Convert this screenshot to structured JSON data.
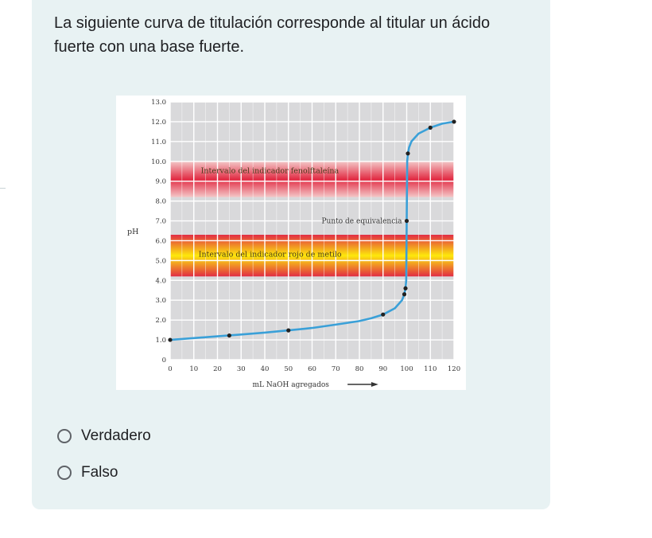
{
  "question": {
    "text": "La siguiente curva de titulación corresponde al titular un ácido fuerte con una base fuerte."
  },
  "options": [
    {
      "label": "Verdadero",
      "selected": false
    },
    {
      "label": "Falso",
      "selected": false
    }
  ],
  "chart_data": {
    "type": "line",
    "title": "",
    "xlabel": "mL NaOH agregados",
    "ylabel": "pH",
    "xlim": [
      0,
      120
    ],
    "ylim": [
      0,
      13
    ],
    "xticks": [
      "0",
      "10",
      "20",
      "30",
      "40",
      "50",
      "60",
      "70",
      "80",
      "90",
      "100",
      "110",
      "120"
    ],
    "yticks": [
      "0",
      "1.0",
      "2.0",
      "3.0",
      "4.0",
      "5.0",
      "6.0",
      "7.0",
      "8.0",
      "9.0",
      "10.0",
      "11.0",
      "12.0",
      "13.0"
    ],
    "grid": true,
    "series": [
      {
        "color": "#3aa0d8",
        "x": [
          0,
          10,
          20,
          30,
          40,
          50,
          60,
          70,
          80,
          85,
          90,
          95,
          98,
          99,
          99.5,
          99.8,
          100,
          100.2,
          100.5,
          101,
          102,
          105,
          110,
          115,
          120
        ],
        "y": [
          1.0,
          1.09,
          1.18,
          1.27,
          1.37,
          1.48,
          1.6,
          1.77,
          1.95,
          2.09,
          2.28,
          2.59,
          3.0,
          3.3,
          3.6,
          4.0,
          7.0,
          10.0,
          10.4,
          10.7,
          11.0,
          11.4,
          11.7,
          11.9,
          12.0
        ]
      }
    ],
    "points": [
      {
        "x": 0,
        "y": 1.0
      },
      {
        "x": 25,
        "y": 1.22
      },
      {
        "x": 50,
        "y": 1.48
      },
      {
        "x": 90,
        "y": 2.28
      },
      {
        "x": 99,
        "y": 3.3
      },
      {
        "x": 99.5,
        "y": 3.6
      },
      {
        "x": 100,
        "y": 7.0
      },
      {
        "x": 100.5,
        "y": 10.4
      },
      {
        "x": 110,
        "y": 11.7
      },
      {
        "x": 120,
        "y": 12.0
      }
    ],
    "bands": [
      {
        "name": "Intervalo del indicador fenolftaleína",
        "from": 8.2,
        "to": 10.0,
        "colors": [
          "#f5c6c6",
          "#e2233c"
        ]
      },
      {
        "name": "Intervalo del indicador rojo de metilo",
        "from": 4.2,
        "to": 6.3,
        "colors": [
          "#e2233c",
          "#ffe900"
        ]
      }
    ],
    "annotations": [
      {
        "text": "Punto de equivalencia",
        "x": 100,
        "y": 7.0
      }
    ],
    "colors": {
      "plot_bg": "#d9d9db",
      "grid": "#ffffff",
      "curve": "#3aa0d8",
      "point": "#222222"
    }
  }
}
